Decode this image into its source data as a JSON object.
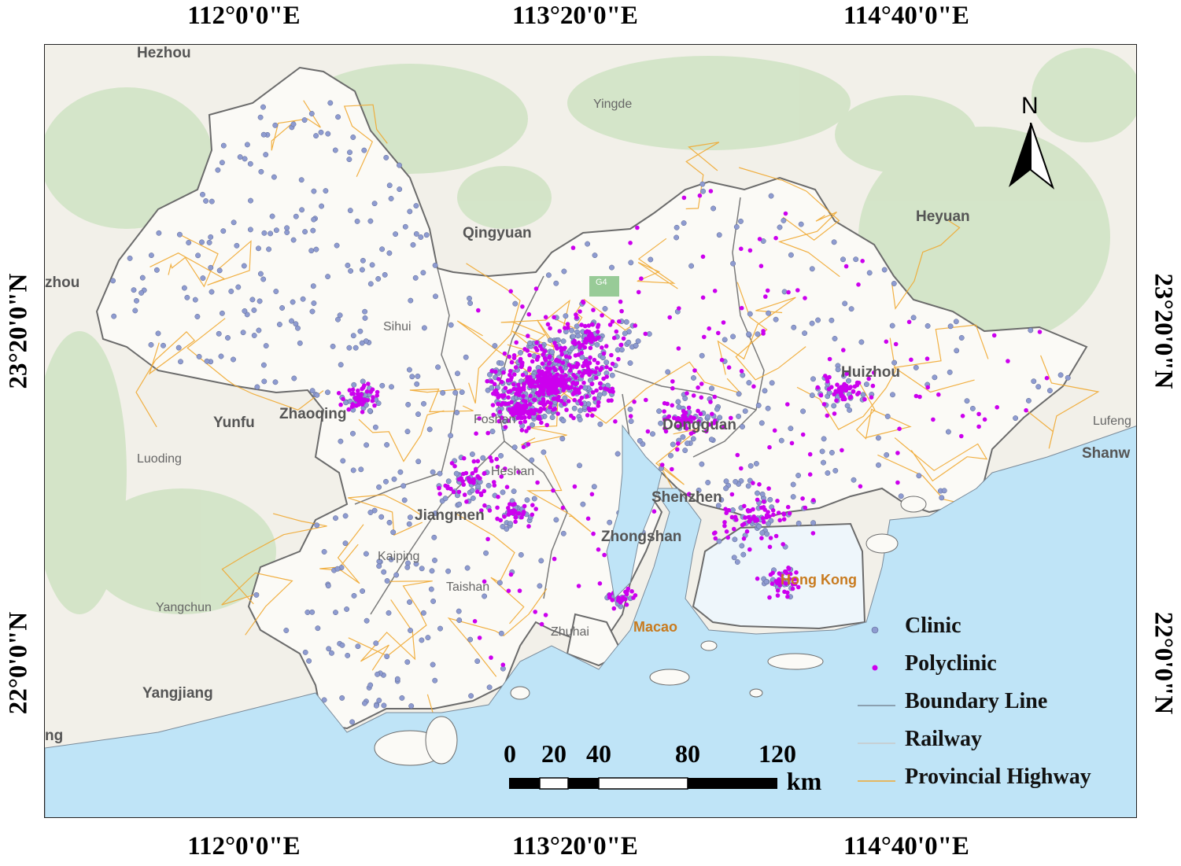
{
  "graticule": {
    "lon_labels": [
      "112°0'0\"E",
      "113°20'0\"E",
      "114°40'0\"E"
    ],
    "lat_labels": [
      "23°20'0\"N",
      "22°0'0\"N"
    ]
  },
  "places": {
    "hezhou": "Hezhou",
    "yingde": "Yingde",
    "heyuan": "Heyuan",
    "qingyuan": "Qingyuan",
    "zhou": "zhou",
    "yunfu": "Yunfu",
    "zhaoqing": "Zhaoqing",
    "luoding": "Luoding",
    "lufeng": "Lufeng",
    "shanwei": "Shanw",
    "huizhou": "Huizhou",
    "dongguan": "Dongguan",
    "shenzhen": "Shenzhen",
    "zhongshan": "Zhongshan",
    "jiangmen": "Jiangmen",
    "kaiping": "Kaiping",
    "taishan": "Taishan",
    "yangchun": "Yangchun",
    "yangjiang": "Yangjiang",
    "ng": "ng",
    "macao": "Macao",
    "zhuhai": "Zhuhai",
    "foshan": "Foshan",
    "heshan": "Heshan",
    "hongkong": "Hong Kong",
    "sihui": "Sihui",
    "highway_shield": "G4"
  },
  "north_arrow": {
    "label": "N"
  },
  "legend": {
    "items": [
      {
        "label": "Clinic",
        "symbol": "dot",
        "color": "#8e9bd0"
      },
      {
        "label": "Polyclinic",
        "symbol": "dot",
        "color": "#cc00ee"
      },
      {
        "label": "Boundary Line",
        "symbol": "line",
        "color": "#7a8a99"
      },
      {
        "label": "Railway",
        "symbol": "line",
        "color": "#c9c9c9"
      },
      {
        "label": "Provincial Highway",
        "symbol": "line",
        "color": "#f0a830"
      }
    ]
  },
  "scale_bar": {
    "labels": [
      "0",
      "20",
      "40",
      "80",
      "120"
    ],
    "unit": "km"
  },
  "colors": {
    "sea": "#bfe4f7",
    "land": "#f2f0e9",
    "vegetation": "#cfe3c3",
    "study_area": "#fbfaf6",
    "boundary": "#6b6b6b",
    "highway": "#f0a830",
    "clinic": "#8e9bd0",
    "polyclinic": "#cc00ee"
  }
}
